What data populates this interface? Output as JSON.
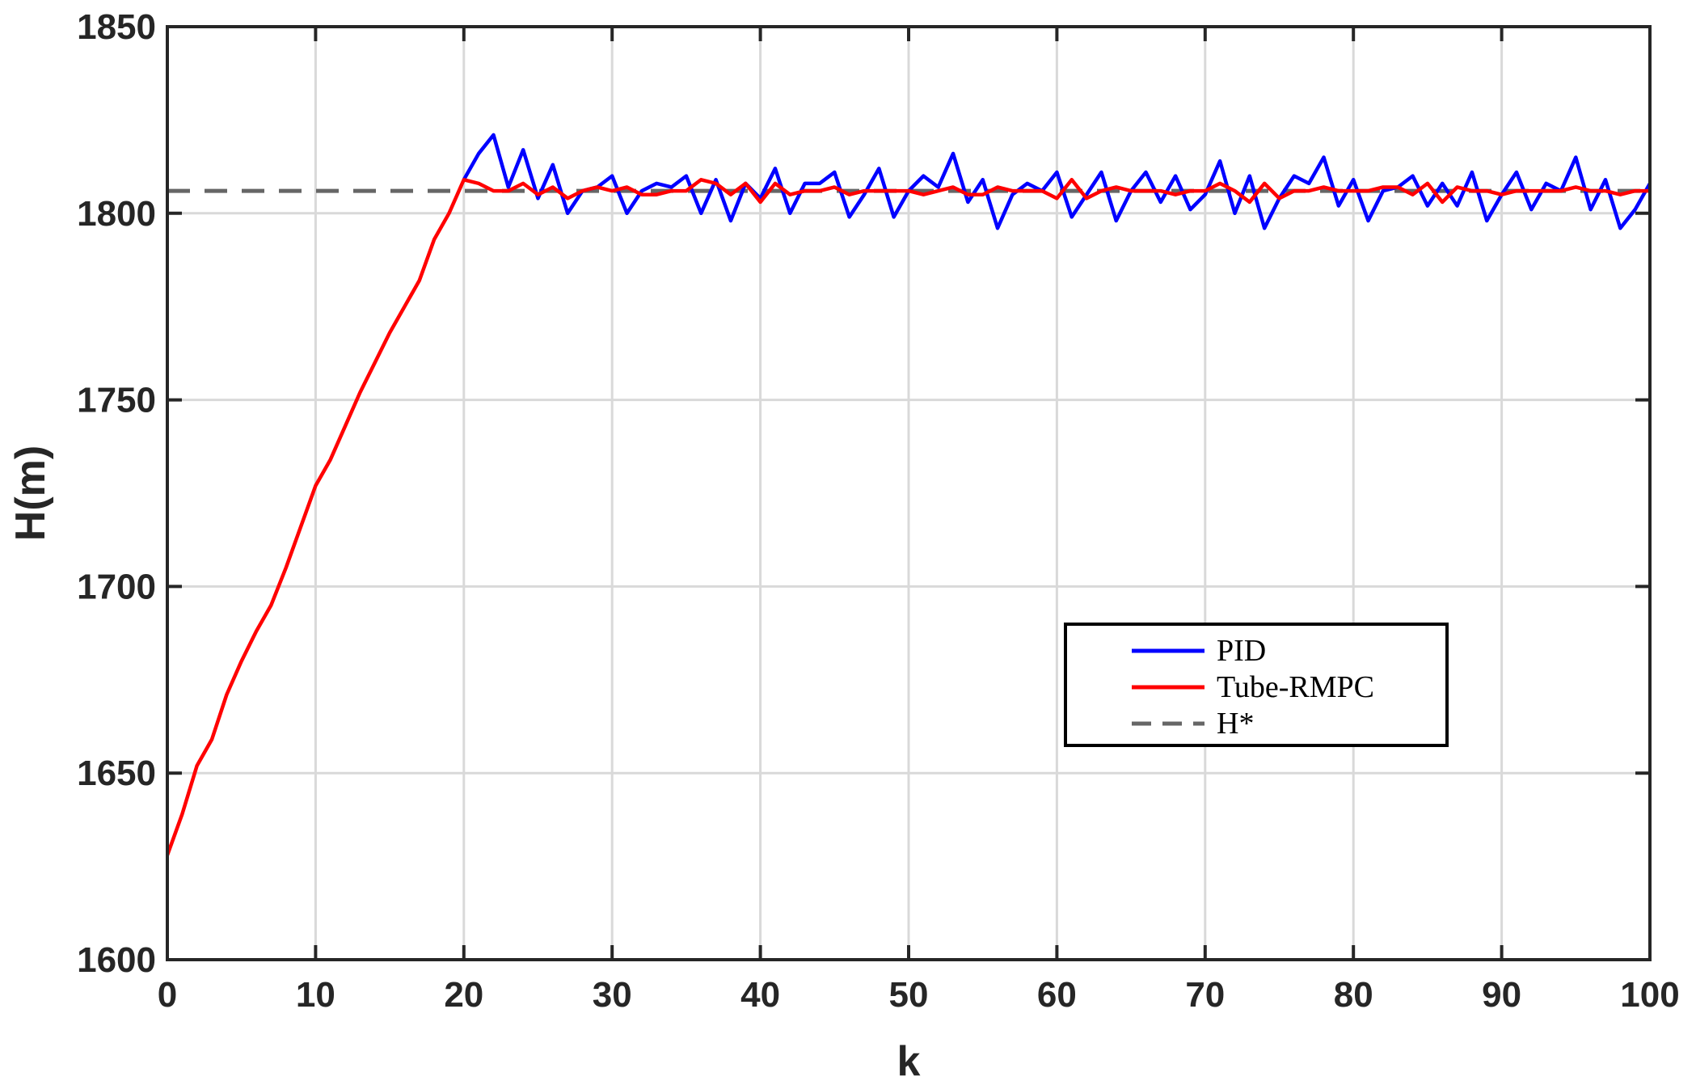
{
  "chart_data": {
    "type": "line",
    "xlabel": "k",
    "ylabel": "H(m)",
    "xlim": [
      0,
      100
    ],
    "ylim": [
      1600,
      1850
    ],
    "xticks": [
      0,
      10,
      20,
      30,
      40,
      50,
      60,
      70,
      80,
      90,
      100
    ],
    "yticks": [
      1600,
      1650,
      1700,
      1750,
      1800,
      1850
    ],
    "grid": true,
    "legend_position": "lower-right",
    "series": [
      {
        "name": "PID",
        "color": "#0000ff",
        "style": "solid",
        "x": [
          20,
          21,
          22,
          23,
          24,
          25,
          26,
          27,
          28,
          29,
          30,
          31,
          32,
          33,
          34,
          35,
          36,
          37,
          38,
          39,
          40,
          41,
          42,
          43,
          44,
          45,
          46,
          47,
          48,
          49,
          50,
          51,
          52,
          53,
          54,
          55,
          56,
          57,
          58,
          59,
          60,
          61,
          62,
          63,
          64,
          65,
          66,
          67,
          68,
          69,
          70,
          71,
          72,
          73,
          74,
          75,
          76,
          77,
          78,
          79,
          80,
          81,
          82,
          83,
          84,
          85,
          86,
          87,
          88,
          89,
          90,
          91,
          92,
          93,
          94,
          95,
          96,
          97,
          98,
          99,
          100
        ],
        "values": [
          1809,
          1816,
          1821,
          1807,
          1817,
          1804,
          1813,
          1800,
          1806,
          1807,
          1810,
          1800,
          1806,
          1808,
          1807,
          1810,
          1800,
          1809,
          1798,
          1808,
          1804,
          1812,
          1800,
          1808,
          1808,
          1811,
          1799,
          1805,
          1812,
          1799,
          1806,
          1810,
          1807,
          1816,
          1803,
          1809,
          1796,
          1805,
          1808,
          1806,
          1811,
          1799,
          1805,
          1811,
          1798,
          1806,
          1811,
          1803,
          1810,
          1801,
          1805,
          1814,
          1800,
          1810,
          1796,
          1804,
          1810,
          1808,
          1815,
          1802,
          1809,
          1798,
          1806,
          1807,
          1810,
          1802,
          1808,
          1802,
          1811,
          1798,
          1805,
          1811,
          1801,
          1808,
          1806,
          1815,
          1801,
          1809,
          1796,
          1801,
          1808
        ]
      },
      {
        "name": "Tube-RMPC",
        "color": "#ff0000",
        "style": "solid",
        "x": [
          0,
          1,
          2,
          3,
          4,
          5,
          6,
          7,
          8,
          9,
          10,
          11,
          12,
          13,
          14,
          15,
          16,
          17,
          18,
          19,
          20,
          21,
          22,
          23,
          24,
          25,
          26,
          27,
          28,
          29,
          30,
          31,
          32,
          33,
          34,
          35,
          36,
          37,
          38,
          39,
          40,
          41,
          42,
          43,
          44,
          45,
          46,
          47,
          48,
          49,
          50,
          51,
          52,
          53,
          54,
          55,
          56,
          57,
          58,
          59,
          60,
          61,
          62,
          63,
          64,
          65,
          66,
          67,
          68,
          69,
          70,
          71,
          72,
          73,
          74,
          75,
          76,
          77,
          78,
          79,
          80,
          81,
          82,
          83,
          84,
          85,
          86,
          87,
          88,
          89,
          90,
          91,
          92,
          93,
          94,
          95,
          96,
          97,
          98,
          99,
          100
        ],
        "values": [
          1628,
          1639,
          1652,
          1659,
          1671,
          1680,
          1688,
          1695,
          1705,
          1716,
          1727,
          1734,
          1743,
          1752,
          1760,
          1768,
          1775,
          1782,
          1793,
          1800,
          1809,
          1808,
          1806,
          1806,
          1808,
          1805,
          1807,
          1804,
          1806,
          1807,
          1806,
          1807,
          1805,
          1805,
          1806,
          1806,
          1809,
          1808,
          1805,
          1808,
          1803,
          1808,
          1805,
          1806,
          1806,
          1807,
          1805,
          1806,
          1806,
          1806,
          1806,
          1805,
          1806,
          1807,
          1805,
          1805,
          1807,
          1806,
          1806,
          1806,
          1804,
          1809,
          1804,
          1806,
          1807,
          1806,
          1806,
          1806,
          1805,
          1806,
          1806,
          1808,
          1806,
          1803,
          1808,
          1804,
          1806,
          1806,
          1807,
          1806,
          1806,
          1806,
          1807,
          1807,
          1805,
          1808,
          1803,
          1807,
          1806,
          1806,
          1805,
          1806,
          1806,
          1806,
          1806,
          1807,
          1806,
          1806,
          1805,
          1806,
          1806
        ]
      },
      {
        "name": "H*",
        "color": "#666666",
        "style": "dashed",
        "x": [
          0,
          100
        ],
        "values": [
          1806,
          1806
        ]
      }
    ]
  }
}
